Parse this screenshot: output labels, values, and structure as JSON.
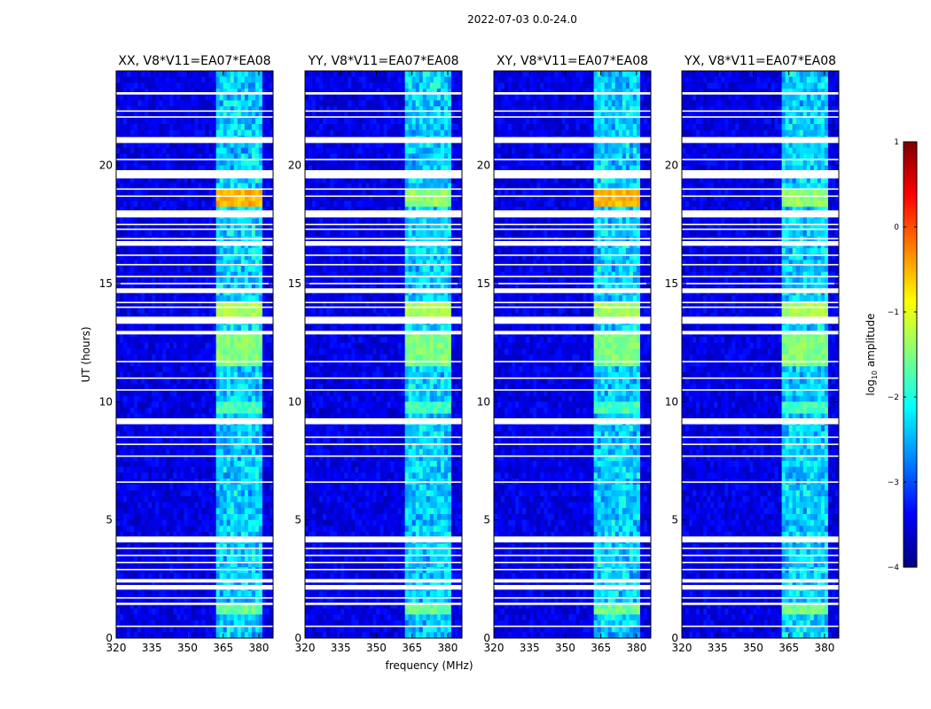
{
  "chart_data": {
    "type": "heatmap",
    "suptitle": "2022-07-03 0.0-24.0",
    "xlabel": "frequency (MHz)",
    "ylabel": "UT (hours)",
    "xlim": [
      320,
      386
    ],
    "ylim": [
      0,
      24
    ],
    "x_ticks": [
      320,
      335,
      350,
      365,
      380
    ],
    "y_ticks": [
      0,
      5,
      10,
      15,
      20
    ],
    "panels": [
      {
        "title": "XX, V8*V11=EA07*EA08"
      },
      {
        "title": "YY, V8*V11=EA07*EA08"
      },
      {
        "title": "XY, V8*V11=EA07*EA08"
      },
      {
        "title": "YX, V8*V11=EA07*EA08"
      }
    ],
    "colorbar": {
      "label_main": "log",
      "label_sub": "10",
      "label_rest": " amplitude",
      "range": [
        -4,
        1
      ],
      "ticks": [
        "1",
        "0",
        "−1",
        "−2",
        "−3",
        "−4"
      ],
      "colormap": "jet",
      "colors": [
        "#000080",
        "#0000ff",
        "#0080ff",
        "#00ffff",
        "#80ff80",
        "#ffff00",
        "#ff8000",
        "#ff0000",
        "#800000"
      ]
    },
    "background_level": -3.5,
    "bright_band_mhz": [
      362,
      381
    ],
    "blank_intervals_hours": [
      [
        23.1,
        23.0
      ],
      [
        21.2,
        20.95
      ],
      [
        19.8,
        19.45
      ],
      [
        18.1,
        17.8
      ],
      [
        16.8,
        16.6
      ],
      [
        14.8,
        14.6
      ],
      [
        13.6,
        13.3
      ],
      [
        13.0,
        12.85
      ],
      [
        9.3,
        9.05
      ],
      [
        4.3,
        4.05
      ],
      [
        2.5,
        2.35
      ],
      [
        2.25,
        2.05
      ],
      [
        1.5,
        1.4
      ]
    ],
    "thin_gap_hours": [
      22.3,
      22.05,
      20.25,
      19.0,
      18.7,
      17.5,
      17.3,
      16.9,
      16.2,
      15.8,
      15.3,
      15.0,
      14.2,
      14.0,
      11.7,
      11.0,
      10.5,
      8.5,
      8.2,
      7.7,
      6.6,
      3.8,
      3.5,
      3.2,
      2.9,
      1.7,
      0.5
    ],
    "events": [
      {
        "t0": 18.3,
        "t1": 18.9,
        "level": -0.5,
        "note": "strong RFI event in XX / XY"
      },
      {
        "t0": 13.6,
        "t1": 14.2,
        "level": -1.3
      },
      {
        "t0": 11.6,
        "t1": 13.0,
        "level": -1.5
      },
      {
        "t0": 9.5,
        "t1": 10.1,
        "level": -1.8
      },
      {
        "t0": 1.0,
        "t1": 1.4,
        "level": -1.6
      }
    ]
  }
}
